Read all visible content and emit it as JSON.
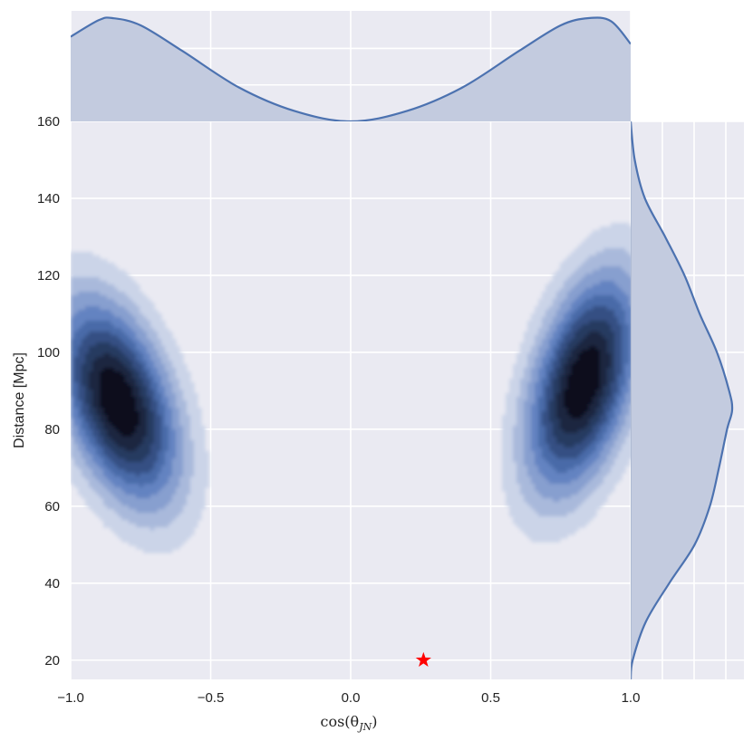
{
  "chart_data": {
    "type": "joint-kde",
    "xlabel": "cos(θ",
    "xlabel_sub": "JN",
    "xlabel_close": ")",
    "ylabel": "Distance [Mpc]",
    "x_ticks": [
      "−1.0",
      "−0.5",
      "0.0",
      "0.5",
      "1.0"
    ],
    "x_tick_values": [
      -1.0,
      -0.5,
      0.0,
      0.5,
      1.0
    ],
    "y_ticks": [
      "20",
      "40",
      "60",
      "80",
      "100",
      "120",
      "140",
      "160"
    ],
    "y_tick_values": [
      20,
      40,
      60,
      80,
      100,
      120,
      140,
      160
    ],
    "xlim": [
      -1.0,
      1.0
    ],
    "ylim": [
      15,
      160
    ],
    "grid": true,
    "colors": {
      "background": "#eaeaf2",
      "grid": "#ffffff",
      "line": "#4c72b0",
      "fill": "#c3cbdf",
      "marker": "#ff0000",
      "levels": [
        "#cbd4e8",
        "#a9b9db",
        "#879fcf",
        "#6483c1",
        "#4a6aa8",
        "#354f83",
        "#263a60",
        "#1a2540",
        "#0b0f1a"
      ]
    },
    "kde_modes": [
      {
        "x": -0.83,
        "y": 87,
        "sx": 0.13,
        "sy": 16,
        "rho": -0.45
      },
      {
        "x": 0.83,
        "y": 92,
        "sx": 0.12,
        "sy": 17,
        "rho": 0.45
      }
    ],
    "marginal_x": {
      "x": [
        -1.0,
        -0.9,
        -0.85,
        -0.75,
        -0.6,
        -0.4,
        -0.2,
        0.0,
        0.2,
        0.4,
        0.6,
        0.75,
        0.85,
        0.93,
        1.0
      ],
      "density": [
        0.82,
        0.98,
        1.0,
        0.93,
        0.68,
        0.33,
        0.1,
        0.0,
        0.1,
        0.33,
        0.68,
        0.93,
        1.0,
        0.97,
        0.75
      ]
    },
    "marginal_y": {
      "y": [
        15,
        20,
        30,
        40,
        50,
        60,
        70,
        80,
        85,
        90,
        100,
        110,
        120,
        130,
        140,
        150,
        160
      ],
      "density": [
        0.0,
        0.02,
        0.15,
        0.38,
        0.63,
        0.78,
        0.87,
        0.95,
        1.0,
        0.97,
        0.85,
        0.68,
        0.53,
        0.34,
        0.14,
        0.04,
        0.0
      ]
    },
    "marker": {
      "x": 0.26,
      "y": 20,
      "symbol": "star"
    }
  }
}
